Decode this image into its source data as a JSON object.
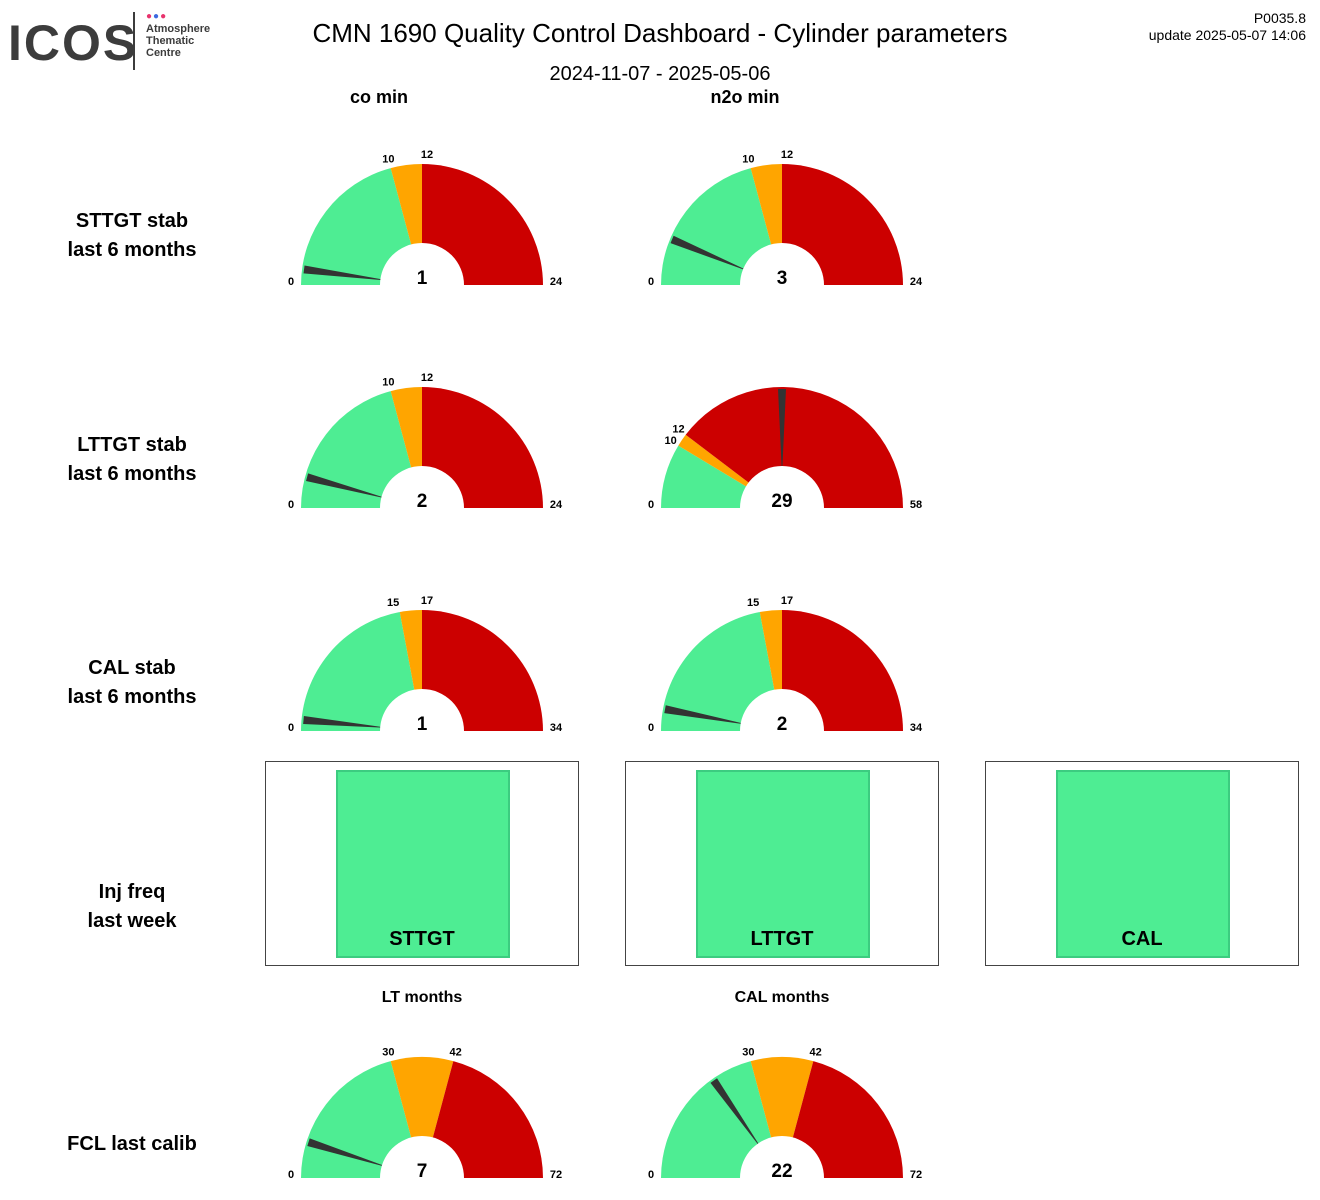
{
  "header": {
    "logo_text": "ICOS",
    "logo_sub": [
      "Atmosphere",
      "Thematic",
      "Centre"
    ],
    "title": "CMN 1690 Quality Control Dashboard - Cylinder parameters",
    "date_range": "2024-11-07 - 2025-05-06",
    "code": "P0035.8",
    "update": "update  2025-05-07 14:06"
  },
  "columns": [
    "co min",
    "n2o min"
  ],
  "rows": [
    [
      "STTGT stab",
      "last 6 months"
    ],
    [
      "LTTGT stab",
      "last 6 months"
    ],
    [
      "CAL stab",
      "last 6 months"
    ],
    [
      "Inj freq",
      "last week"
    ],
    [
      "FCL last calib"
    ]
  ],
  "colors": {
    "green": "#4eed93",
    "orange": "#ffa500",
    "red": "#cc0000",
    "needle": "#333333"
  },
  "chart_data": [
    {
      "type": "gauge",
      "row": "STTGT stab",
      "column": "co min",
      "min": 0,
      "max": 24,
      "thresholds": [
        10,
        12
      ],
      "value": 1
    },
    {
      "type": "gauge",
      "row": "STTGT stab",
      "column": "n2o min",
      "min": 0,
      "max": 24,
      "thresholds": [
        10,
        12
      ],
      "value": 3
    },
    {
      "type": "gauge",
      "row": "LTTGT stab",
      "column": "co min",
      "min": 0,
      "max": 24,
      "thresholds": [
        10,
        12
      ],
      "value": 2
    },
    {
      "type": "gauge",
      "row": "LTTGT stab",
      "column": "n2o min",
      "min": 0,
      "max": 58,
      "thresholds": [
        10,
        12
      ],
      "value": 29
    },
    {
      "type": "gauge",
      "row": "CAL stab",
      "column": "co min",
      "min": 0,
      "max": 34,
      "thresholds": [
        15,
        17
      ],
      "value": 1
    },
    {
      "type": "gauge",
      "row": "CAL stab",
      "column": "n2o min",
      "min": 0,
      "max": 34,
      "thresholds": [
        15,
        17
      ],
      "value": 2
    },
    {
      "type": "gauge",
      "row": "FCL last calib",
      "subtitle": "LT months",
      "min": 0,
      "max": 72,
      "thresholds": [
        30,
        42
      ],
      "value": 7
    },
    {
      "type": "gauge",
      "row": "FCL last calib",
      "subtitle": "CAL months",
      "min": 0,
      "max": 72,
      "thresholds": [
        30,
        42
      ],
      "value": 22
    }
  ],
  "inj_freq": [
    {
      "label": "STTGT",
      "status": "ok"
    },
    {
      "label": "LTTGT",
      "status": "ok"
    },
    {
      "label": "CAL",
      "status": "ok"
    }
  ]
}
